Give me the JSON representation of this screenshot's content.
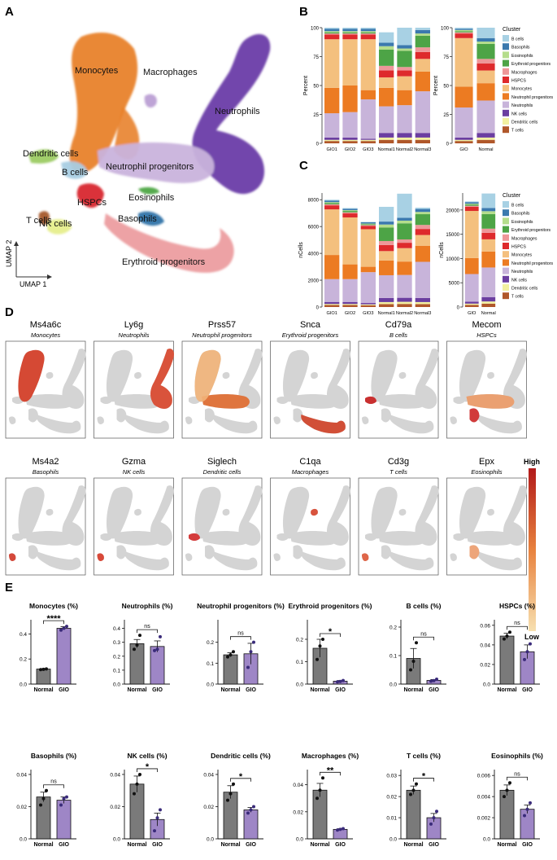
{
  "panels": {
    "a": "A",
    "b": "B",
    "c": "C",
    "d": "D",
    "e": "E"
  },
  "umap": {
    "xlabel": "UMAP 1",
    "ylabel": "UMAP 2",
    "clusters": [
      {
        "name": "Monocytes",
        "color": "#E8822B"
      },
      {
        "name": "Macrophages",
        "color": "#B79AD2"
      },
      {
        "name": "Neutrophils",
        "color": "#6A3BA8"
      },
      {
        "name": "Dendritic cells",
        "color": "#9CCB63"
      },
      {
        "name": "B cells",
        "color": "#A8CDE3"
      },
      {
        "name": "Neutrophil progenitors",
        "color": "#C9B3DC"
      },
      {
        "name": "HSPCs",
        "color": "#D8282E"
      },
      {
        "name": "Eosinophils",
        "color": "#4EA745"
      },
      {
        "name": "Basophils",
        "color": "#2F72A8"
      },
      {
        "name": "T cells",
        "color": "#A5582A"
      },
      {
        "name": "NK cells",
        "color": "#E6EE8C"
      },
      {
        "name": "Erythroid progenitors",
        "color": "#EC9DA0"
      }
    ]
  },
  "legend_title": "Cluster",
  "legend_items": [
    {
      "name": "B cells",
      "color": "#A8D1E4"
    },
    {
      "name": "Basophils",
      "color": "#3B79AE"
    },
    {
      "name": "Eosinophils",
      "color": "#B4DD8C"
    },
    {
      "name": "Erythroid progenitors",
      "color": "#4DA446"
    },
    {
      "name": "Macrophages",
      "color": "#EE9799"
    },
    {
      "name": "HSPCS",
      "color": "#DE2A2C"
    },
    {
      "name": "Monocytes",
      "color": "#F4C07E"
    },
    {
      "name": "Neutrophil progenitors",
      "color": "#EC7B22"
    },
    {
      "name": "Neutrophils",
      "color": "#C8B4DA"
    },
    {
      "name": "NK cells",
      "color": "#6B3EA0"
    },
    {
      "name": "Dendritic cells",
      "color": "#F2F0A0"
    },
    {
      "name": "T cells",
      "color": "#B0572A"
    }
  ],
  "chart_data": [
    {
      "type": "stacked-bar",
      "panel": "B-left",
      "ylabel": "Percent",
      "ylim": [
        0,
        100
      ],
      "yticks": [
        0,
        25,
        50,
        75,
        100
      ],
      "categories": [
        "GIO1",
        "GIO2",
        "GIO3",
        "Normal1",
        "Normal2",
        "Normal3"
      ],
      "series": [
        {
          "name": "T cells",
          "values": [
            2,
            2,
            2,
            3,
            3,
            3
          ]
        },
        {
          "name": "Dendritic cells",
          "values": [
            1,
            1,
            1,
            2,
            2,
            2
          ]
        },
        {
          "name": "NK cells",
          "values": [
            2,
            2,
            1,
            4,
            4,
            4
          ]
        },
        {
          "name": "Neutrophils",
          "values": [
            21,
            22,
            34,
            23,
            24,
            36
          ]
        },
        {
          "name": "Neutrophil progenitors",
          "values": [
            22,
            23,
            8,
            16,
            13,
            17
          ]
        },
        {
          "name": "Monocytes",
          "values": [
            42,
            40,
            44,
            9,
            12,
            11
          ]
        },
        {
          "name": "HSPCS",
          "values": [
            4,
            4,
            4,
            6,
            5,
            6
          ]
        },
        {
          "name": "Macrophages",
          "values": [
            1,
            1,
            1,
            4,
            3,
            4
          ]
        },
        {
          "name": "Erythroid progenitors",
          "values": [
            1,
            1,
            1,
            14,
            14,
            10
          ]
        },
        {
          "name": "Eosinophils",
          "values": [
            1,
            1,
            1,
            3,
            2,
            2
          ]
        },
        {
          "name": "Basophils",
          "values": [
            2,
            2,
            2,
            3,
            3,
            3
          ]
        },
        {
          "name": "B cells",
          "values": [
            1,
            1,
            1,
            9,
            15,
            2
          ]
        }
      ]
    },
    {
      "type": "stacked-bar",
      "panel": "B-right",
      "ylabel": "Percent",
      "ylim": [
        0,
        100
      ],
      "yticks": [
        0,
        25,
        50,
        75,
        100
      ],
      "categories": [
        "GIO",
        "Normal"
      ],
      "series": [
        {
          "name": "T cells",
          "values": [
            2,
            3
          ]
        },
        {
          "name": "Dendritic cells",
          "values": [
            1,
            2
          ]
        },
        {
          "name": "NK cells",
          "values": [
            2,
            4
          ]
        },
        {
          "name": "Neutrophils",
          "values": [
            26,
            28
          ]
        },
        {
          "name": "Neutrophil progenitors",
          "values": [
            18,
            15
          ]
        },
        {
          "name": "Monocytes",
          "values": [
            42,
            11
          ]
        },
        {
          "name": "HSPCS",
          "values": [
            4,
            6
          ]
        },
        {
          "name": "Macrophages",
          "values": [
            1,
            4
          ]
        },
        {
          "name": "Erythroid progenitors",
          "values": [
            1,
            13
          ]
        },
        {
          "name": "Eosinophils",
          "values": [
            1,
            2
          ]
        },
        {
          "name": "Basophils",
          "values": [
            1,
            3
          ]
        },
        {
          "name": "B cells",
          "values": [
            1,
            9
          ]
        }
      ]
    },
    {
      "type": "stacked-bar",
      "panel": "C-left",
      "ylabel": "nCells",
      "ylim": [
        0,
        8500
      ],
      "yticks": [
        0,
        2000,
        4000,
        6000,
        8000
      ],
      "categories": [
        "GIO1",
        "GIO2",
        "GIO3",
        "Normal1",
        "Normal2",
        "Normal3"
      ],
      "series": [
        {
          "name": "T cells",
          "values": [
            150,
            150,
            130,
            220,
            230,
            220
          ]
        },
        {
          "name": "Dendritic cells",
          "values": [
            80,
            80,
            70,
            150,
            160,
            150
          ]
        },
        {
          "name": "NK cells",
          "values": [
            150,
            150,
            100,
            300,
            300,
            300
          ]
        },
        {
          "name": "Neutrophils",
          "values": [
            1700,
            1700,
            2300,
            1700,
            1700,
            2700
          ]
        },
        {
          "name": "Neutrophil progenitors",
          "values": [
            1800,
            1100,
            400,
            1100,
            1000,
            1200
          ]
        },
        {
          "name": "Monocytes",
          "values": [
            3400,
            3500,
            2800,
            700,
            1000,
            800
          ]
        },
        {
          "name": "HSPCS",
          "values": [
            300,
            300,
            250,
            450,
            400,
            450
          ]
        },
        {
          "name": "Macrophages",
          "values": [
            80,
            80,
            60,
            300,
            250,
            300
          ]
        },
        {
          "name": "Erythroid progenitors",
          "values": [
            100,
            100,
            60,
            1000,
            1200,
            800
          ]
        },
        {
          "name": "Eosinophils",
          "values": [
            60,
            60,
            50,
            230,
            200,
            170
          ]
        },
        {
          "name": "Basophils",
          "values": [
            120,
            100,
            100,
            220,
            210,
            220
          ]
        },
        {
          "name": "B cells",
          "values": [
            60,
            60,
            30,
            1100,
            1800,
            100
          ]
        }
      ]
    },
    {
      "type": "stacked-bar",
      "panel": "C-right",
      "ylabel": "nCells",
      "ylim": [
        0,
        23500
      ],
      "yticks": [
        0,
        5000,
        10000,
        15000,
        20000
      ],
      "categories": [
        "GIO",
        "Normal"
      ],
      "series": [
        {
          "name": "T cells",
          "values": [
            450,
            700
          ]
        },
        {
          "name": "Dendritic cells",
          "values": [
            250,
            450
          ]
        },
        {
          "name": "NK cells",
          "values": [
            400,
            900
          ]
        },
        {
          "name": "Neutrophils",
          "values": [
            5700,
            6100
          ]
        },
        {
          "name": "Neutrophil progenitors",
          "values": [
            3300,
            3300
          ]
        },
        {
          "name": "Monocytes",
          "values": [
            9700,
            2500
          ]
        },
        {
          "name": "HSPCS",
          "values": [
            850,
            1350
          ]
        },
        {
          "name": "Macrophages",
          "values": [
            220,
            850
          ]
        },
        {
          "name": "Erythroid progenitors",
          "values": [
            260,
            3000
          ]
        },
        {
          "name": "Eosinophils",
          "values": [
            170,
            600
          ]
        },
        {
          "name": "Basophils",
          "values": [
            320,
            650
          ]
        },
        {
          "name": "B cells",
          "values": [
            150,
            3000
          ]
        }
      ]
    },
    {
      "type": "bar",
      "panel": "E",
      "title": "Monocytes (%)",
      "categories": [
        "Normal",
        "GIO"
      ],
      "values": [
        0.12,
        0.445
      ],
      "errors": [
        0.004,
        0.013
      ],
      "points": [
        [
          0.115,
          0.118,
          0.121
        ],
        [
          0.43,
          0.445,
          0.46
        ]
      ],
      "yticks": [
        0.0,
        0.2,
        0.4
      ],
      "ylim": [
        0,
        0.5
      ],
      "significance": "****"
    },
    {
      "type": "bar",
      "panel": "E",
      "title": "Neutrophils (%)",
      "categories": [
        "Normal",
        "GIO"
      ],
      "values": [
        0.29,
        0.27
      ],
      "errors": [
        0.03,
        0.04
      ],
      "points": [
        [
          0.25,
          0.28,
          0.35
        ],
        [
          0.24,
          0.25,
          0.34
        ]
      ],
      "yticks": [
        0.0,
        0.1,
        0.2,
        0.3,
        0.4
      ],
      "ylim": [
        0,
        0.45
      ],
      "significance": "ns"
    },
    {
      "type": "bar",
      "panel": "E",
      "title": "Neutrophil progenitors (%)",
      "categories": [
        "Normal",
        "GIO"
      ],
      "values": [
        0.14,
        0.145
      ],
      "errors": [
        0.01,
        0.05
      ],
      "points": [
        [
          0.13,
          0.14,
          0.155
        ],
        [
          0.08,
          0.155,
          0.2
        ]
      ],
      "yticks": [
        0.0,
        0.1,
        0.2
      ],
      "ylim": [
        0,
        0.3
      ],
      "significance": "ns"
    },
    {
      "type": "bar",
      "panel": "E",
      "title": "Erythroid progenitors (%)",
      "categories": [
        "Normal",
        "GIO"
      ],
      "values": [
        0.16,
        0.013
      ],
      "errors": [
        0.04,
        0.003
      ],
      "points": [
        [
          0.11,
          0.17,
          0.2
        ],
        [
          0.01,
          0.012,
          0.016
        ]
      ],
      "yticks": [
        0.0,
        0.1,
        0.2
      ],
      "ylim": [
        0,
        0.28
      ],
      "significance": "*"
    },
    {
      "type": "bar",
      "panel": "E",
      "title": "B cells (%)",
      "categories": [
        "Normal",
        "GIO"
      ],
      "values": [
        0.09,
        0.013
      ],
      "errors": [
        0.035,
        0.003
      ],
      "points": [
        [
          0.05,
          0.08,
          0.145
        ],
        [
          0.01,
          0.012,
          0.017
        ]
      ],
      "yticks": [
        0.0,
        0.1,
        0.2
      ],
      "ylim": [
        0,
        0.22
      ],
      "significance": "ns"
    },
    {
      "type": "bar",
      "panel": "E",
      "title": "HSPCs (%)",
      "categories": [
        "Normal",
        "GIO"
      ],
      "values": [
        0.049,
        0.033
      ],
      "errors": [
        0.003,
        0.007
      ],
      "points": [
        [
          0.046,
          0.049,
          0.053
        ],
        [
          0.025,
          0.033,
          0.041
        ]
      ],
      "yticks": [
        0.0,
        0.02,
        0.04,
        0.06
      ],
      "ylim": [
        0,
        0.064
      ],
      "significance": "ns"
    },
    {
      "type": "bar",
      "panel": "E",
      "title": "Basophils (%)",
      "categories": [
        "Normal",
        "GIO"
      ],
      "values": [
        0.026,
        0.024
      ],
      "errors": [
        0.003,
        0.002
      ],
      "points": [
        [
          0.021,
          0.025,
          0.03
        ],
        [
          0.021,
          0.025,
          0.026
        ]
      ],
      "yticks": [
        0.0,
        0.02,
        0.04
      ],
      "ylim": [
        0,
        0.042
      ],
      "significance": "ns"
    },
    {
      "type": "bar",
      "panel": "E",
      "title": "NK cells (%)",
      "categories": [
        "Normal",
        "GIO"
      ],
      "values": [
        0.034,
        0.012
      ],
      "errors": [
        0.005,
        0.004
      ],
      "points": [
        [
          0.028,
          0.034,
          0.04
        ],
        [
          0.005,
          0.013,
          0.018
        ]
      ],
      "yticks": [
        0.0,
        0.02,
        0.04
      ],
      "ylim": [
        0,
        0.042
      ],
      "significance": "*"
    },
    {
      "type": "bar",
      "panel": "E",
      "title": "Dendritic cells (%)",
      "categories": [
        "Normal",
        "GIO"
      ],
      "values": [
        0.029,
        0.018
      ],
      "errors": [
        0.004,
        0.0015
      ],
      "points": [
        [
          0.024,
          0.028,
          0.034
        ],
        [
          0.016,
          0.018,
          0.02
        ]
      ],
      "yticks": [
        0.0,
        0.02,
        0.04
      ],
      "ylim": [
        0,
        0.042
      ],
      "significance": "*"
    },
    {
      "type": "bar",
      "panel": "E",
      "title": "Macrophages (%)",
      "categories": [
        "Normal",
        "GIO"
      ],
      "values": [
        0.036,
        0.007
      ],
      "errors": [
        0.005,
        0.0005
      ],
      "points": [
        [
          0.03,
          0.036,
          0.045
        ],
        [
          0.0065,
          0.007,
          0.0075
        ]
      ],
      "yticks": [
        0.0,
        0.02,
        0.04
      ],
      "ylim": [
        0,
        0.05
      ],
      "significance": "**"
    },
    {
      "type": "bar",
      "panel": "E",
      "title": "T cells (%)",
      "categories": [
        "Normal",
        "GIO"
      ],
      "values": [
        0.023,
        0.01
      ],
      "errors": [
        0.002,
        0.002
      ],
      "points": [
        [
          0.021,
          0.023,
          0.026
        ],
        [
          0.007,
          0.01,
          0.013
        ]
      ],
      "yticks": [
        0.0,
        0.01,
        0.02,
        0.03
      ],
      "ylim": [
        0,
        0.032
      ],
      "significance": "*"
    },
    {
      "type": "bar",
      "panel": "E",
      "title": "Eosinophils (%)",
      "categories": [
        "Normal",
        "GIO"
      ],
      "values": [
        0.0046,
        0.0028
      ],
      "errors": [
        0.0005,
        0.0004
      ],
      "points": [
        [
          0.004,
          0.0046,
          0.0053
        ],
        [
          0.0022,
          0.0028,
          0.0034
        ]
      ],
      "yticks": [
        0.0,
        0.002,
        0.004,
        0.006
      ],
      "ylim": [
        0,
        0.0064
      ],
      "significance": "ns"
    }
  ],
  "feature_plots": [
    {
      "gene": "Ms4a6c",
      "celltype": "Monocytes",
      "hot": "monocytes"
    },
    {
      "gene": "Ly6g",
      "celltype": "Neutrophils",
      "hot": "neutrophils"
    },
    {
      "gene": "Prss57",
      "celltype": "Neutrophil progenitors",
      "hot": "neuprog"
    },
    {
      "gene": "Snca",
      "celltype": "Erythroid progenitors",
      "hot": "ery"
    },
    {
      "gene": "Cd79a",
      "celltype": "B cells",
      "hot": "bcell"
    },
    {
      "gene": "Mecom",
      "celltype": "HSPCs",
      "hot": "hspc"
    },
    {
      "gene": "Ms4a2",
      "celltype": "Basophils",
      "hot": "baso"
    },
    {
      "gene": "Gzma",
      "celltype": "NK cells",
      "hot": "nk"
    },
    {
      "gene": "Siglech",
      "celltype": "Dendritic cells",
      "hot": "dc"
    },
    {
      "gene": "C1qa",
      "celltype": "Macrophages",
      "hot": "macro"
    },
    {
      "gene": "Cd3g",
      "celltype": "T cells",
      "hot": "tcell"
    },
    {
      "gene": "Epx",
      "celltype": "Eosinophils",
      "hot": "eos"
    }
  ],
  "colorbar": {
    "high": "High",
    "low": "Low"
  }
}
